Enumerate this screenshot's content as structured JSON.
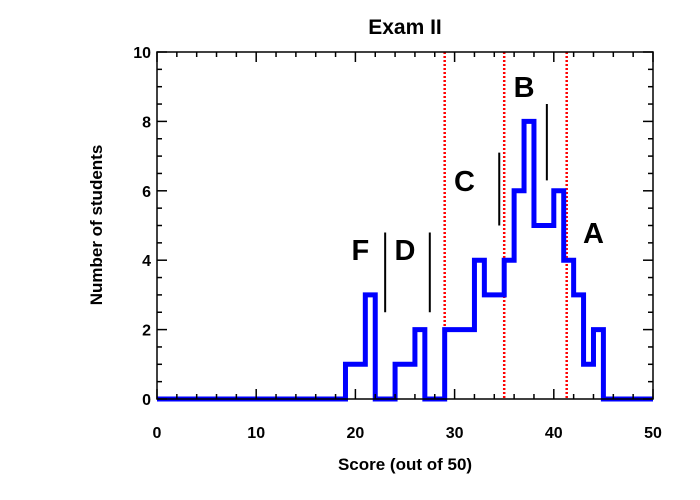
{
  "chart_data": {
    "type": "histogram",
    "title": "Exam II",
    "xlabel": "Score (out of 50)",
    "ylabel": "Number of students",
    "xlim": [
      0,
      50
    ],
    "ylim": [
      0,
      10
    ],
    "x_ticks": [
      0,
      10,
      20,
      30,
      40,
      50
    ],
    "y_ticks": [
      0,
      2,
      4,
      6,
      8,
      10
    ],
    "line_color": "#0000ff",
    "cutoff_color": "#ff0000",
    "marker_color": "#000000",
    "steps": [
      {
        "x0": 0,
        "x1": 19,
        "count": 0
      },
      {
        "x0": 19,
        "x1": 21,
        "count": 1
      },
      {
        "x0": 21,
        "x1": 22,
        "count": 3
      },
      {
        "x0": 22,
        "x1": 24,
        "count": 0
      },
      {
        "x0": 24,
        "x1": 26,
        "count": 1
      },
      {
        "x0": 26,
        "x1": 27,
        "count": 2
      },
      {
        "x0": 27,
        "x1": 29,
        "count": 0
      },
      {
        "x0": 29,
        "x1": 32,
        "count": 2
      },
      {
        "x0": 32,
        "x1": 33,
        "count": 4
      },
      {
        "x0": 33,
        "x1": 35,
        "count": 3
      },
      {
        "x0": 35,
        "x1": 36,
        "count": 4
      },
      {
        "x0": 36,
        "x1": 37,
        "count": 6
      },
      {
        "x0": 37,
        "x1": 38,
        "count": 8
      },
      {
        "x0": 38,
        "x1": 40,
        "count": 5
      },
      {
        "x0": 40,
        "x1": 41,
        "count": 6
      },
      {
        "x0": 41,
        "x1": 42,
        "count": 4
      },
      {
        "x0": 42,
        "x1": 43,
        "count": 3
      },
      {
        "x0": 43,
        "x1": 44,
        "count": 1
      },
      {
        "x0": 44,
        "x1": 45,
        "count": 2
      },
      {
        "x0": 45,
        "x1": 50,
        "count": 0
      }
    ],
    "cutoff_lines": [
      29,
      35,
      41.3
    ],
    "grade_markers": [
      {
        "x": 23,
        "y0": 2.5,
        "y1": 4.8
      },
      {
        "x": 27.5,
        "y0": 2.5,
        "y1": 4.8
      },
      {
        "x": 34.5,
        "y0": 5,
        "y1": 7.1
      },
      {
        "x": 39.3,
        "y0": 6.3,
        "y1": 8.5
      }
    ],
    "grade_labels": [
      {
        "text": "F",
        "x": 20.5,
        "y": 4
      },
      {
        "text": "D",
        "x": 25,
        "y": 4
      },
      {
        "text": "C",
        "x": 31,
        "y": 6
      },
      {
        "text": "B",
        "x": 37,
        "y": 8.7
      },
      {
        "text": "A",
        "x": 44,
        "y": 4.5
      }
    ]
  }
}
